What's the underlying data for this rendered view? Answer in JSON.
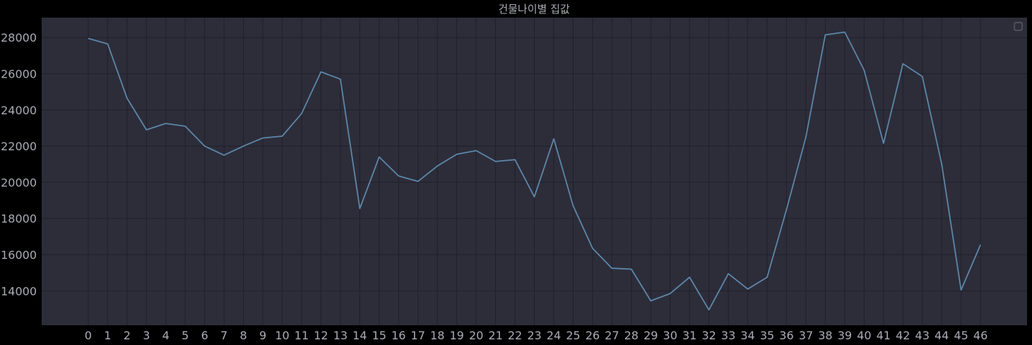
{
  "chart_data": {
    "type": "line",
    "title": "건물나이별 집값",
    "xlabel": "",
    "ylabel": "",
    "x": [
      0,
      1,
      2,
      3,
      4,
      5,
      6,
      7,
      8,
      9,
      10,
      11,
      12,
      13,
      14,
      15,
      16,
      17,
      18,
      19,
      20,
      21,
      22,
      23,
      24,
      25,
      26,
      27,
      28,
      29,
      30,
      31,
      32,
      33,
      34,
      35,
      36,
      37,
      38,
      39,
      40,
      41,
      42,
      43,
      44,
      45,
      46
    ],
    "series": [
      {
        "values": [
          27950,
          27650,
          24650,
          22900,
          23250,
          23100,
          22000,
          21500,
          22000,
          22450,
          22550,
          23800,
          26100,
          25700,
          18550,
          21400,
          20350,
          20050,
          20900,
          21550,
          21750,
          21150,
          21250,
          19200,
          22400,
          18700,
          16350,
          15250,
          15200,
          13450,
          13850,
          14750,
          12950,
          14950,
          14100,
          14750,
          18500,
          22500,
          28150,
          28300,
          26200,
          22150,
          26550,
          25850,
          21000,
          14050,
          16550
        ],
        "color": "#5d86a8"
      }
    ],
    "xlim": [
      -2.4,
      48.4
    ],
    "ylim": [
      12100,
      29100
    ],
    "yticks": [
      14000,
      16000,
      18000,
      20000,
      22000,
      24000,
      26000,
      28000
    ],
    "grid": true,
    "legend": "top-right",
    "colors": {
      "background": "#000000",
      "plot_background": "#2d2d3a",
      "grid": "#20202b",
      "text": "#a9acb3",
      "line": "#5d86a8"
    }
  }
}
